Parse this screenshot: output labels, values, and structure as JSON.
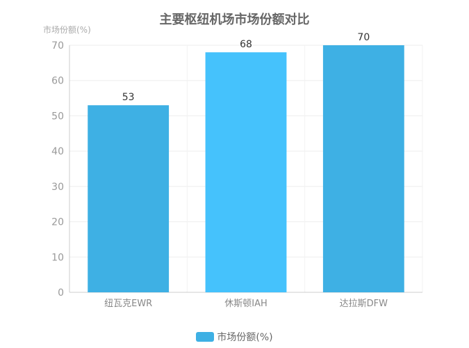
{
  "chart_data": {
    "type": "bar",
    "title": "主要枢纽机场市场份额对比",
    "ylabel": "市场份额(%)",
    "xlabel": "",
    "ylim": [
      0,
      70
    ],
    "yticks": [
      0,
      10,
      20,
      30,
      40,
      50,
      60,
      70
    ],
    "categories": [
      "纽瓦克EWR",
      "休斯顿IAH",
      "达拉斯DFW"
    ],
    "series": [
      {
        "name": "市场份额(%)",
        "values": [
          53,
          68,
          70
        ]
      }
    ],
    "bar_colors": [
      "#3eb0e4",
      "#45c2fc",
      "#3eb0e4"
    ],
    "legend_color": "#3eb0e4",
    "grid": true,
    "legend_position": "bottom"
  }
}
